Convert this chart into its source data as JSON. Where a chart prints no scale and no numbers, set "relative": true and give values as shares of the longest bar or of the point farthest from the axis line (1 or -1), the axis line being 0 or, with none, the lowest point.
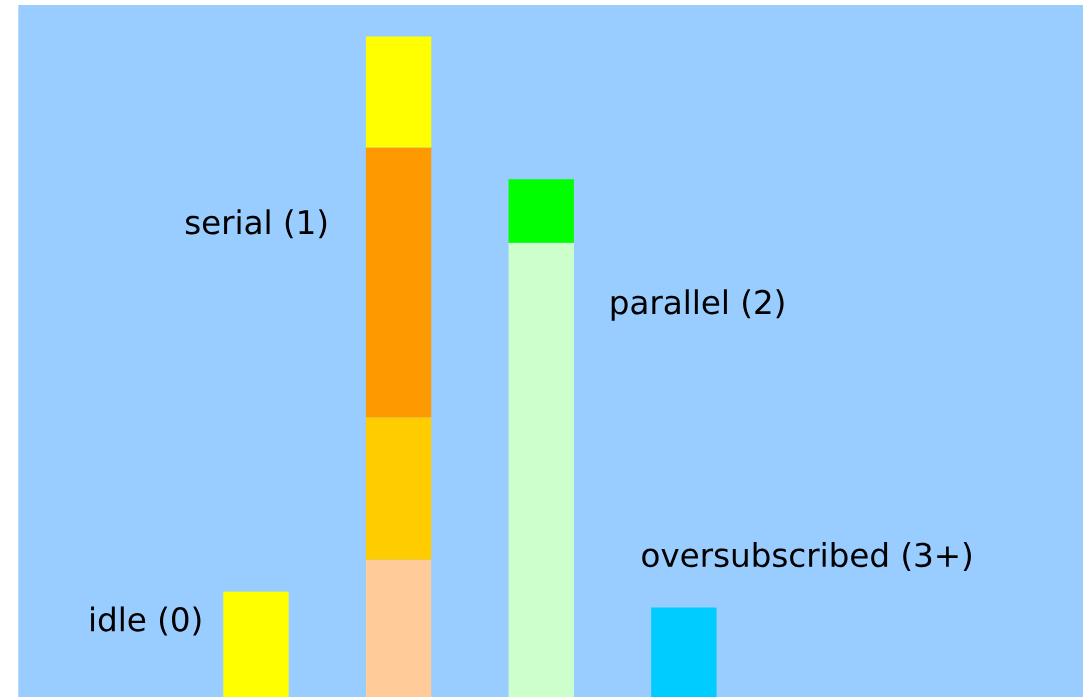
{
  "chart_data": {
    "type": "bar",
    "stacked": true,
    "relative": true,
    "categories": [
      null,
      null,
      null,
      null
    ],
    "annotations": [
      "idle (0)",
      "serial (1)",
      "parallel (2)",
      "oversubscribed (3+)"
    ],
    "series": [
      {
        "values": [
          0.16,
          0.208,
          0.688,
          0.136
        ],
        "colors": [
          "#ffff00",
          "#ffcc99",
          "#ccffcc",
          "#00ccff"
        ]
      },
      {
        "values": [
          null,
          0.216,
          0.096,
          null
        ],
        "colors": [
          null,
          "#ffcc00",
          "#00ff00",
          null
        ]
      },
      {
        "values": [
          null,
          0.408,
          null,
          null
        ],
        "colors": [
          null,
          "#ff9900",
          null,
          null
        ]
      },
      {
        "values": [
          null,
          0.168,
          null,
          null
        ],
        "colors": [
          null,
          "#ffff00",
          null,
          null
        ]
      }
    ]
  }
}
